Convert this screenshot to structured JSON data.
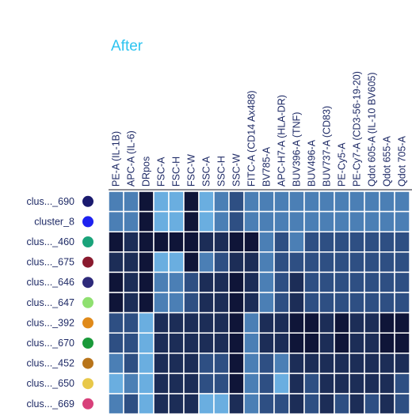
{
  "chart_data": {
    "type": "heatmap",
    "title": "After",
    "columns": [
      "PE-A (IL-1B)",
      "APC-A (IL-6)",
      "DRpos",
      "FSC-A",
      "FSC-H",
      "FSC-W",
      "SSC-A",
      "SSC-H",
      "SSC-W",
      "FITC-A (CD14 Ax488)",
      "BV785-A",
      "APC-H7-A (HLA-DR)",
      "BUV396-A (TNF)",
      "BUV496-A",
      "BUV737-A (CD83)",
      "PE-Cy5-A",
      "PE-Cy7-A (CD3-56-19-20)",
      "Qdot 605-A (IL-10 BV605)",
      "Qdot 655-A",
      "Qdot 705-A"
    ],
    "rows": [
      {
        "label": "clus..._690",
        "dot_color": "#1a1a6e"
      },
      {
        "label": "cluster_8",
        "dot_color": "#1e22f0"
      },
      {
        "label": "clus..._460",
        "dot_color": "#1aa37a"
      },
      {
        "label": "clus..._675",
        "dot_color": "#8a1a2e"
      },
      {
        "label": "clus..._646",
        "dot_color": "#2e2a7a"
      },
      {
        "label": "clus..._647",
        "dot_color": "#8fe070"
      },
      {
        "label": "clus..._392",
        "dot_color": "#e08a1a"
      },
      {
        "label": "clus..._670",
        "dot_color": "#1a9a3a"
      },
      {
        "label": "clus..._452",
        "dot_color": "#b8741a"
      },
      {
        "label": "clus..._650",
        "dot_color": "#e8c84a"
      },
      {
        "label": "clus..._669",
        "dot_color": "#d8407a"
      }
    ],
    "values": [
      [
        2,
        2,
        5,
        1,
        1,
        5,
        1,
        2,
        3,
        2,
        2,
        2,
        2,
        2,
        2,
        2,
        2,
        2,
        2,
        2
      ],
      [
        2,
        2,
        5,
        1,
        1,
        5,
        1,
        2,
        3,
        2,
        2,
        2,
        2,
        2,
        2,
        2,
        2,
        2,
        2,
        2
      ],
      [
        5,
        4,
        5,
        5,
        5,
        5,
        4,
        4,
        5,
        5,
        2,
        3,
        2,
        3,
        3,
        3,
        3,
        3,
        3,
        3
      ],
      [
        4,
        4,
        5,
        1,
        1,
        5,
        2,
        3,
        4,
        4,
        2,
        3,
        3,
        3,
        3,
        3,
        3,
        3,
        3,
        3
      ],
      [
        5,
        4,
        5,
        2,
        2,
        3,
        4,
        4,
        5,
        4,
        2,
        3,
        4,
        3,
        3,
        3,
        3,
        3,
        3,
        3
      ],
      [
        5,
        4,
        5,
        2,
        2,
        3,
        4,
        4,
        5,
        4,
        2,
        3,
        4,
        3,
        3,
        3,
        3,
        3,
        3,
        3
      ],
      [
        3,
        3,
        1,
        4,
        4,
        4,
        4,
        4,
        5,
        2,
        4,
        4,
        5,
        5,
        4,
        5,
        4,
        4,
        5,
        5
      ],
      [
        3,
        3,
        1,
        4,
        4,
        4,
        4,
        4,
        5,
        2,
        4,
        4,
        5,
        5,
        4,
        5,
        4,
        4,
        5,
        5
      ],
      [
        2,
        3,
        1,
        4,
        4,
        4,
        3,
        3,
        5,
        2,
        3,
        2,
        4,
        4,
        4,
        4,
        4,
        4,
        4,
        4
      ],
      [
        1,
        2,
        1,
        4,
        4,
        4,
        3,
        3,
        5,
        2,
        3,
        1,
        4,
        3,
        4,
        4,
        4,
        4,
        4,
        3
      ],
      [
        2,
        3,
        1,
        4,
        4,
        4,
        1,
        1,
        4,
        2,
        3,
        3,
        4,
        3,
        4,
        3,
        4,
        3,
        4,
        3
      ]
    ],
    "color_scale": [
      "#8ad8ff",
      "#6aaee0",
      "#4b7fb5",
      "#2e4f83",
      "#1c2d57",
      "#0f1538"
    ],
    "value_range": [
      0,
      5
    ]
  }
}
